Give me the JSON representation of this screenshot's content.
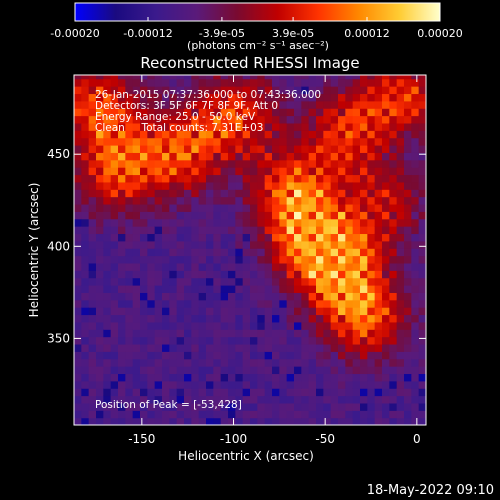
{
  "chart_data": {
    "type": "heatmap",
    "title": "Reconstructed RHESSI Image",
    "colorbar": {
      "ticks": [
        "-0.00020",
        "-0.00012",
        "-3.9e-05",
        "3.9e-05",
        "0.00012",
        "0.00020"
      ],
      "range": [
        -0.0002,
        0.0002
      ],
      "unit_label": "(photons cm⁻² s⁻¹ asec⁻²)",
      "colors": [
        "#0000ff",
        "#1a0a80",
        "#3b1a8c",
        "#5a1a7a",
        "#7a0a30",
        "#c00000",
        "#ff3300",
        "#ff8800",
        "#ffcc33",
        "#ffffcc"
      ]
    },
    "xlabel": "Heliocentric X (arcsec)",
    "ylabel": "Heliocentric Y (arcsec)",
    "xlim": [
      -187,
      5
    ],
    "ylim": [
      303,
      493
    ],
    "xticks": [
      -150,
      -100,
      -50,
      0
    ],
    "yticks": [
      350,
      400,
      450
    ],
    "info_lines": [
      "26-Jan-2015 07:37:36.000 to 07:43:36.000",
      "Detectors: 3F 5F 6F 7F 8F 9F, Att 0",
      "Energy Range: 25.0 - 50.0 keV",
      "Clean     Total counts: 7.31E+03"
    ],
    "peak_label": "Position of Peak = [-53,428]",
    "peak": [
      -53,
      428
    ],
    "bright_regions": [
      {
        "x": -45,
        "y": 385,
        "v": 1.0
      },
      {
        "x": -60,
        "y": 405,
        "v": 0.9
      },
      {
        "x": -30,
        "y": 360,
        "v": 0.8
      },
      {
        "x": -70,
        "y": 430,
        "v": 0.75
      },
      {
        "x": -130,
        "y": 450,
        "v": 0.8
      },
      {
        "x": -165,
        "y": 440,
        "v": 0.85
      },
      {
        "x": -100,
        "y": 470,
        "v": 0.75
      },
      {
        "x": -40,
        "y": 460,
        "v": 0.7
      },
      {
        "x": -10,
        "y": 480,
        "v": 0.7
      },
      {
        "x": -175,
        "y": 475,
        "v": 0.8
      },
      {
        "x": -20,
        "y": 420,
        "v": 0.55
      }
    ]
  },
  "footer": {
    "date": "18-May-2022 09:10"
  }
}
